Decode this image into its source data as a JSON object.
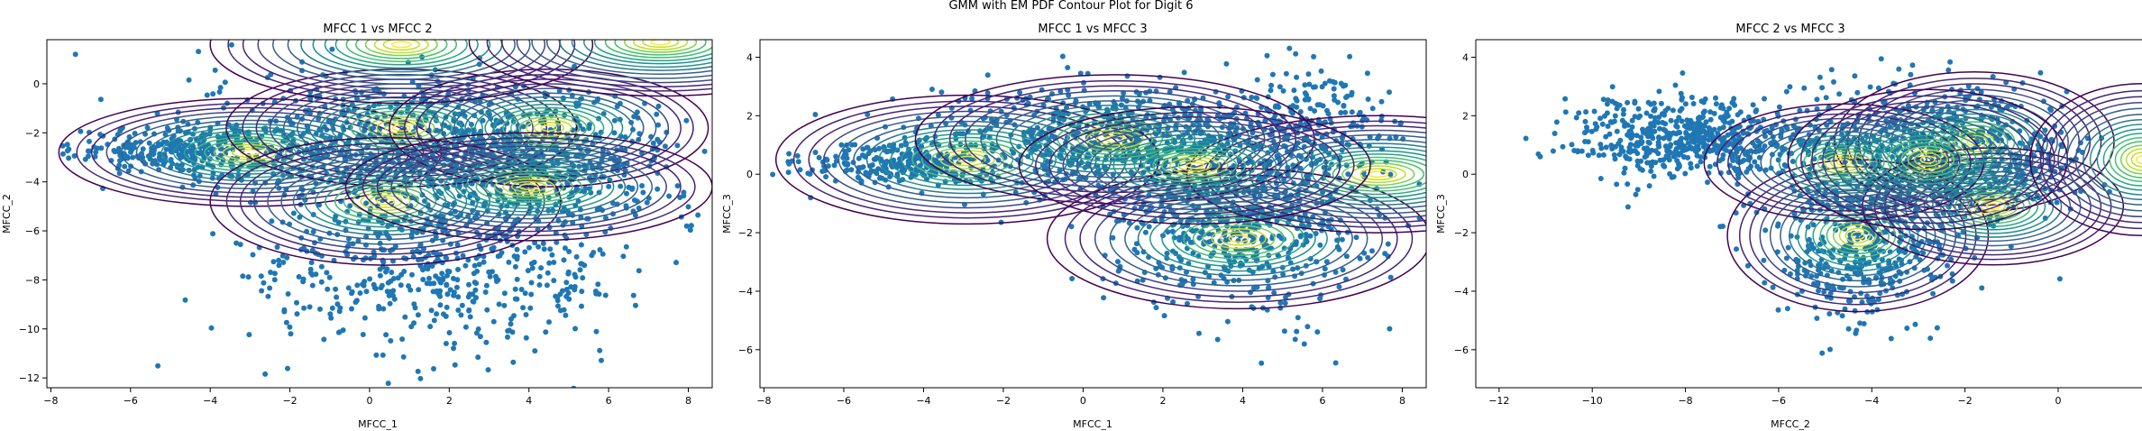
{
  "figure": {
    "suptitle": "GMM with EM PDF Contour Plot for Digit 6"
  },
  "colors": {
    "scatter": "#1f77b4",
    "contour_colormap": "viridis"
  },
  "chart_data": [
    {
      "type": "scatter",
      "title": "MFCC 1 vs MFCC 2",
      "xlabel": "MFCC_1",
      "ylabel": "MFCC_2",
      "xlim": [
        -8.1,
        8.6
      ],
      "ylim": [
        -12.4,
        1.8
      ],
      "xticks": [
        -8,
        -6,
        -4,
        -2,
        0,
        2,
        4,
        6,
        8
      ],
      "yticks": [
        -12,
        -10,
        -8,
        -6,
        -4,
        -2,
        0
      ],
      "grid": false,
      "overlay": "GMM PDF contour lines (viridis)",
      "gmm_components": [
        {
          "mean": [
            -3.0,
            -2.8
          ],
          "std": [
            2.4,
            1.1
          ]
        },
        {
          "mean": [
            0.8,
            -1.8
          ],
          "std": [
            2.2,
            1.2
          ]
        },
        {
          "mean": [
            4.5,
            -1.8
          ],
          "std": [
            2.0,
            1.2
          ]
        },
        {
          "mean": [
            0.4,
            -4.8
          ],
          "std": [
            2.2,
            1.3
          ]
        },
        {
          "mean": [
            4.0,
            -4.2
          ],
          "std": [
            2.3,
            1.1
          ]
        },
        {
          "mean": [
            0.8,
            1.6
          ],
          "std": [
            2.4,
            1.2
          ]
        },
        {
          "mean": [
            7.3,
            1.7
          ],
          "std": [
            2.4,
            1.1
          ]
        }
      ],
      "point_clouds": [
        {
          "center": [
            -4.5,
            -2.7
          ],
          "spread": [
            1.5,
            0.5
          ],
          "n": 300
        },
        {
          "center": [
            0.5,
            -2.5
          ],
          "spread": [
            2.5,
            1.4
          ],
          "n": 650
        },
        {
          "center": [
            4.5,
            -3.2
          ],
          "spread": [
            1.6,
            1.3
          ],
          "n": 450
        },
        {
          "center": [
            1.8,
            -7.5
          ],
          "spread": [
            2.4,
            1.7
          ],
          "n": 550
        }
      ]
    },
    {
      "type": "scatter",
      "title": "MFCC 1 vs MFCC 3",
      "xlabel": "MFCC_1",
      "ylabel": "MFCC_3",
      "xlim": [
        -8.1,
        8.6
      ],
      "ylim": [
        -7.3,
        4.6
      ],
      "xticks": [
        -8,
        -6,
        -4,
        -2,
        0,
        2,
        4,
        6,
        8
      ],
      "yticks": [
        -6,
        -4,
        -2,
        0,
        2,
        4
      ],
      "grid": false,
      "overlay": "GMM PDF contour lines (viridis)",
      "gmm_components": [
        {
          "mean": [
            -2.9,
            0.5
          ],
          "std": [
            2.4,
            1.1
          ]
        },
        {
          "mean": [
            0.8,
            1.2
          ],
          "std": [
            2.5,
            1.1
          ]
        },
        {
          "mean": [
            3.9,
            -2.2
          ],
          "std": [
            2.4,
            1.2
          ]
        },
        {
          "mean": [
            7.4,
            0.0
          ],
          "std": [
            2.4,
            1.0
          ]
        },
        {
          "mean": [
            2.8,
            0.3
          ],
          "std": [
            2.2,
            1.0
          ]
        }
      ],
      "point_clouds": [
        {
          "center": [
            -4.5,
            0.4
          ],
          "spread": [
            1.3,
            0.4
          ],
          "n": 300
        },
        {
          "center": [
            0.5,
            1.2
          ],
          "spread": [
            2.2,
            0.9
          ],
          "n": 600
        },
        {
          "center": [
            4.0,
            -1.5
          ],
          "spread": [
            1.6,
            1.6
          ],
          "n": 650
        },
        {
          "center": [
            5.5,
            1.8
          ],
          "spread": [
            1.2,
            0.9
          ],
          "n": 200
        }
      ]
    },
    {
      "type": "scatter",
      "title": "MFCC 2 vs MFCC 3",
      "xlabel": "MFCC_2",
      "ylabel": "MFCC_3",
      "xlim": [
        -12.5,
        1.8
      ],
      "ylim": [
        -7.3,
        4.6
      ],
      "xticks": [
        -12,
        -10,
        -8,
        -6,
        -4,
        -2,
        0
      ],
      "yticks": [
        -6,
        -4,
        -2,
        0,
        2,
        4
      ],
      "grid": false,
      "overlay": "GMM PDF contour lines (viridis)",
      "gmm_components": [
        {
          "mean": [
            -4.3,
            -2.1
          ],
          "std": [
            1.4,
            1.3
          ]
        },
        {
          "mean": [
            -1.8,
            1.1
          ],
          "std": [
            1.5,
            1.2
          ]
        },
        {
          "mean": [
            -1.4,
            -1.1
          ],
          "std": [
            1.4,
            1.0
          ]
        },
        {
          "mean": [
            -4.6,
            0.4
          ],
          "std": [
            1.5,
            1.0
          ]
        },
        {
          "mean": [
            -2.8,
            0.5
          ],
          "std": [
            1.5,
            1.2
          ]
        },
        {
          "mean": [
            1.8,
            0.5
          ],
          "std": [
            1.2,
            1.3
          ]
        }
      ],
      "point_clouds": [
        {
          "center": [
            -8.0,
            1.2
          ],
          "spread": [
            1.2,
            0.7
          ],
          "n": 550
        },
        {
          "center": [
            -3.5,
            0.5
          ],
          "spread": [
            1.6,
            1.3
          ],
          "n": 550
        },
        {
          "center": [
            -4.2,
            -2.8
          ],
          "spread": [
            0.9,
            1.2
          ],
          "n": 350
        },
        {
          "center": [
            -1.5,
            0.8
          ],
          "spread": [
            0.9,
            1.1
          ],
          "n": 250
        }
      ]
    }
  ]
}
